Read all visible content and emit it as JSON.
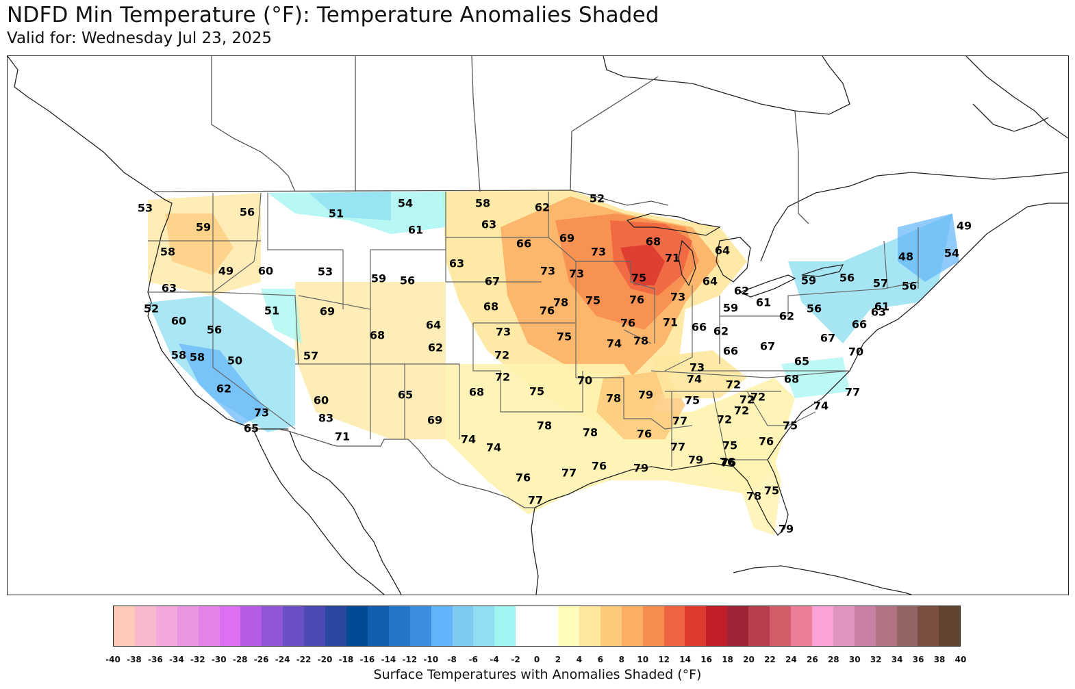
{
  "title": "NDFD Min Temperature (°F): Temperature Anomalies Shaded",
  "subtitle": "Valid for: Wednesday Jul 23, 2025",
  "colorbar": {
    "label": "Surface Temperatures with Anomalies Shaded (°F)",
    "ticks": [
      "-40",
      "-38",
      "-36",
      "-34",
      "-32",
      "-30",
      "-28",
      "-26",
      "-24",
      "-22",
      "-20",
      "-18",
      "-16",
      "-14",
      "-12",
      "-10",
      "-8",
      "-6",
      "-4",
      "-2",
      "0",
      "2",
      "4",
      "6",
      "8",
      "10",
      "12",
      "14",
      "16",
      "18",
      "20",
      "22",
      "24",
      "26",
      "28",
      "30",
      "32",
      "34",
      "36",
      "38",
      "40"
    ],
    "colors": [
      "#fdcbb8",
      "#f8b9cd",
      "#f2a8d9",
      "#eb96e2",
      "#e383ea",
      "#dc70f0",
      "#b55be6",
      "#9155d8",
      "#6b4fc7",
      "#4b49b4",
      "#2a479f",
      "#004b91",
      "#125db0",
      "#2474c9",
      "#3d8de0",
      "#63b5f9",
      "#7ecbf2",
      "#8fdef1",
      "#9ff5f0",
      "#ffffff",
      "#ffffff",
      "#fffbbb",
      "#fee79d",
      "#fdc97b",
      "#fcae63",
      "#f78c4f",
      "#ee6342",
      "#dd3b2f",
      "#c11f27",
      "#9d2437",
      "#b73e4c",
      "#d25c67",
      "#ee7d98",
      "#fba3d6",
      "#e094c0",
      "#c881a4",
      "#af7383",
      "#936462",
      "#7d4f42",
      "#624330"
    ]
  },
  "temperature_labels": [
    {
      "value": "53"
    },
    {
      "value": "56"
    },
    {
      "value": "51"
    },
    {
      "value": "54"
    },
    {
      "value": "58"
    },
    {
      "value": "62"
    },
    {
      "value": "52"
    },
    {
      "value": "59"
    },
    {
      "value": "61"
    },
    {
      "value": "63"
    },
    {
      "value": "66"
    },
    {
      "value": "69"
    },
    {
      "value": "68"
    },
    {
      "value": "58"
    },
    {
      "value": "49"
    },
    {
      "value": "60"
    },
    {
      "value": "53"
    },
    {
      "value": "63"
    },
    {
      "value": "73"
    },
    {
      "value": "71"
    },
    {
      "value": "64"
    },
    {
      "value": "49"
    },
    {
      "value": "63"
    },
    {
      "value": "59"
    },
    {
      "value": "56"
    },
    {
      "value": "67"
    },
    {
      "value": "73"
    },
    {
      "value": "73"
    },
    {
      "value": "75"
    },
    {
      "value": "64"
    },
    {
      "value": "48"
    },
    {
      "value": "54"
    },
    {
      "value": "52"
    },
    {
      "value": "51"
    },
    {
      "value": "69"
    },
    {
      "value": "68"
    },
    {
      "value": "78"
    },
    {
      "value": "76"
    },
    {
      "value": "75"
    },
    {
      "value": "76"
    },
    {
      "value": "73"
    },
    {
      "value": "62"
    },
    {
      "value": "59"
    },
    {
      "value": "56"
    },
    {
      "value": "57"
    },
    {
      "value": "56"
    },
    {
      "value": "60"
    },
    {
      "value": "56"
    },
    {
      "value": "64"
    },
    {
      "value": "76"
    },
    {
      "value": "71"
    },
    {
      "value": "66"
    },
    {
      "value": "59"
    },
    {
      "value": "61"
    },
    {
      "value": "62"
    },
    {
      "value": "56"
    },
    {
      "value": "61"
    },
    {
      "value": "63"
    },
    {
      "value": "66"
    },
    {
      "value": "58"
    },
    {
      "value": "58"
    },
    {
      "value": "50"
    },
    {
      "value": "57"
    },
    {
      "value": "68"
    },
    {
      "value": "62"
    },
    {
      "value": "73"
    },
    {
      "value": "75"
    },
    {
      "value": "74"
    },
    {
      "value": "78"
    },
    {
      "value": "62"
    },
    {
      "value": "66"
    },
    {
      "value": "67"
    },
    {
      "value": "67"
    },
    {
      "value": "70"
    },
    {
      "value": "72"
    },
    {
      "value": "73"
    },
    {
      "value": "72"
    },
    {
      "value": "74"
    },
    {
      "value": "65"
    },
    {
      "value": "62"
    },
    {
      "value": "60"
    },
    {
      "value": "65"
    },
    {
      "value": "68"
    },
    {
      "value": "72"
    },
    {
      "value": "75"
    },
    {
      "value": "70"
    },
    {
      "value": "78"
    },
    {
      "value": "79"
    },
    {
      "value": "75"
    },
    {
      "value": "72"
    },
    {
      "value": "72"
    },
    {
      "value": "68"
    },
    {
      "value": "77"
    },
    {
      "value": "73"
    },
    {
      "value": "83"
    },
    {
      "value": "65"
    },
    {
      "value": "69"
    },
    {
      "value": "71"
    },
    {
      "value": "78"
    },
    {
      "value": "78"
    },
    {
      "value": "77"
    },
    {
      "value": "72"
    },
    {
      "value": "72"
    },
    {
      "value": "74"
    },
    {
      "value": "75"
    },
    {
      "value": "74"
    },
    {
      "value": "74"
    },
    {
      "value": "76"
    },
    {
      "value": "77"
    },
    {
      "value": "75"
    },
    {
      "value": "76"
    },
    {
      "value": "76"
    },
    {
      "value": "77"
    },
    {
      "value": "76"
    },
    {
      "value": "79"
    },
    {
      "value": "79"
    },
    {
      "value": "76"
    },
    {
      "value": "76"
    },
    {
      "value": "77"
    },
    {
      "value": "78"
    },
    {
      "value": "75"
    },
    {
      "value": "79"
    }
  ]
}
